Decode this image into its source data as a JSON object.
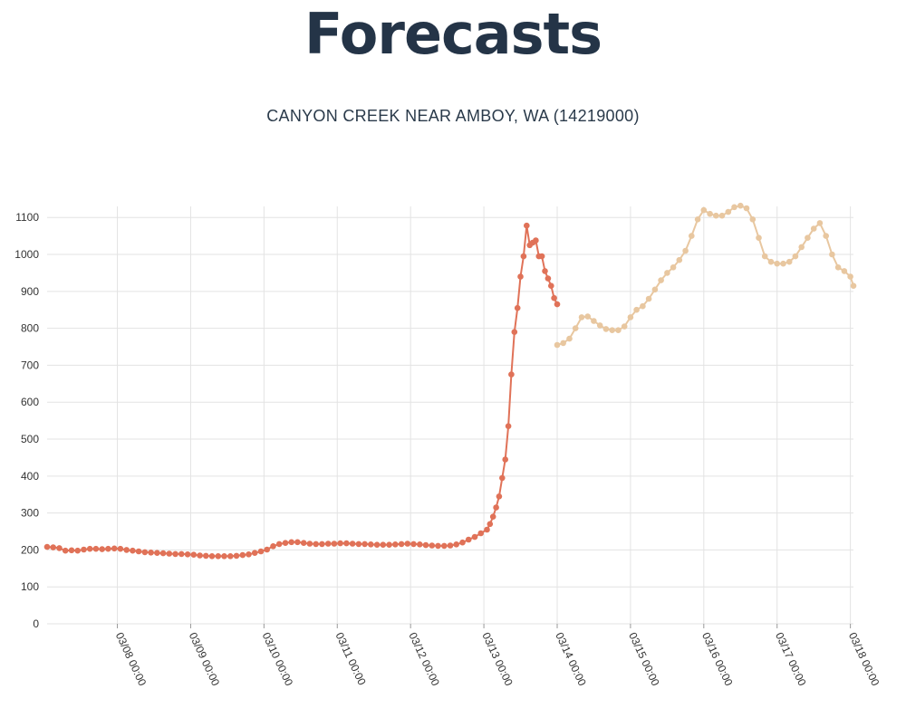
{
  "header": {
    "title": "Forecasts",
    "station": "CANYON CREEK NEAR AMBOY, WA (14219000)"
  },
  "chart_data": {
    "type": "line",
    "title": "",
    "xlabel": "",
    "ylabel": "",
    "ylim": [
      0,
      1100
    ],
    "yticks": [
      0,
      100,
      200,
      300,
      400,
      500,
      600,
      700,
      800,
      900,
      1000,
      1100
    ],
    "xlim": [
      "03/07 01:00",
      "03/18 01:00"
    ],
    "xticks": [
      "03/08 00:00",
      "03/09 00:00",
      "03/10 00:00",
      "03/11 00:00",
      "03/12 00:00",
      "03/13 00:00",
      "03/14 00:00",
      "03/15 00:00",
      "03/16 00:00",
      "03/17 00:00",
      "03/18 00:00"
    ],
    "grid": true,
    "colors": {
      "observed": "#e07258",
      "forecast": "#e8c7a0",
      "grid": "#e3e3e3"
    },
    "series": [
      {
        "key": "observed",
        "points": [
          [
            "03/07 01:00",
            208
          ],
          [
            "03/07 03:00",
            207
          ],
          [
            "03/07 05:00",
            205
          ],
          [
            "03/07 07:00",
            198
          ],
          [
            "03/07 09:00",
            199
          ],
          [
            "03/07 11:00",
            198
          ],
          [
            "03/07 13:00",
            201
          ],
          [
            "03/07 15:00",
            203
          ],
          [
            "03/07 17:00",
            203
          ],
          [
            "03/07 19:00",
            202
          ],
          [
            "03/07 21:00",
            203
          ],
          [
            "03/07 23:00",
            204
          ],
          [
            "03/08 01:00",
            203
          ],
          [
            "03/08 03:00",
            200
          ],
          [
            "03/08 05:00",
            198
          ],
          [
            "03/08 07:00",
            196
          ],
          [
            "03/08 09:00",
            194
          ],
          [
            "03/08 11:00",
            193
          ],
          [
            "03/08 13:00",
            192
          ],
          [
            "03/08 15:00",
            191
          ],
          [
            "03/08 17:00",
            190
          ],
          [
            "03/08 19:00",
            189
          ],
          [
            "03/08 21:00",
            189
          ],
          [
            "03/08 23:00",
            188
          ],
          [
            "03/09 01:00",
            187
          ],
          [
            "03/09 03:00",
            185
          ],
          [
            "03/09 05:00",
            184
          ],
          [
            "03/09 07:00",
            183
          ],
          [
            "03/09 09:00",
            183
          ],
          [
            "03/09 11:00",
            183
          ],
          [
            "03/09 13:00",
            183
          ],
          [
            "03/09 15:00",
            184
          ],
          [
            "03/09 17:00",
            186
          ],
          [
            "03/09 19:00",
            188
          ],
          [
            "03/09 21:00",
            192
          ],
          [
            "03/09 23:00",
            196
          ],
          [
            "03/10 01:00",
            201
          ],
          [
            "03/10 03:00",
            210
          ],
          [
            "03/10 05:00",
            216
          ],
          [
            "03/10 07:00",
            219
          ],
          [
            "03/10 09:00",
            221
          ],
          [
            "03/10 11:00",
            221
          ],
          [
            "03/10 13:00",
            219
          ],
          [
            "03/10 15:00",
            217
          ],
          [
            "03/10 17:00",
            216
          ],
          [
            "03/10 19:00",
            216
          ],
          [
            "03/10 21:00",
            217
          ],
          [
            "03/10 23:00",
            217
          ],
          [
            "03/11 01:00",
            218
          ],
          [
            "03/11 03:00",
            218
          ],
          [
            "03/11 05:00",
            217
          ],
          [
            "03/11 07:00",
            216
          ],
          [
            "03/11 09:00",
            216
          ],
          [
            "03/11 11:00",
            215
          ],
          [
            "03/11 13:00",
            214
          ],
          [
            "03/11 15:00",
            214
          ],
          [
            "03/11 17:00",
            214
          ],
          [
            "03/11 19:00",
            215
          ],
          [
            "03/11 21:00",
            216
          ],
          [
            "03/11 23:00",
            217
          ],
          [
            "03/12 01:00",
            216
          ],
          [
            "03/12 03:00",
            215
          ],
          [
            "03/12 05:00",
            213
          ],
          [
            "03/12 07:00",
            212
          ],
          [
            "03/12 09:00",
            211
          ],
          [
            "03/12 11:00",
            211
          ],
          [
            "03/12 13:00",
            212
          ],
          [
            "03/12 15:00",
            215
          ],
          [
            "03/12 17:00",
            220
          ],
          [
            "03/12 19:00",
            228
          ],
          [
            "03/12 21:00",
            235
          ],
          [
            "03/12 23:00",
            245
          ],
          [
            "03/13 01:00",
            255
          ],
          [
            "03/13 02:00",
            270
          ],
          [
            "03/13 03:00",
            290
          ],
          [
            "03/13 04:00",
            315
          ],
          [
            "03/13 05:00",
            345
          ],
          [
            "03/13 06:00",
            395
          ],
          [
            "03/13 07:00",
            445
          ],
          [
            "03/13 08:00",
            535
          ],
          [
            "03/13 09:00",
            675
          ],
          [
            "03/13 10:00",
            790
          ],
          [
            "03/13 11:00",
            855
          ],
          [
            "03/13 12:00",
            940
          ],
          [
            "03/13 13:00",
            995
          ],
          [
            "03/13 14:00",
            1078
          ],
          [
            "03/13 15:00",
            1025
          ],
          [
            "03/13 16:00",
            1032
          ],
          [
            "03/13 17:00",
            1038
          ],
          [
            "03/13 18:00",
            995
          ],
          [
            "03/13 19:00",
            995
          ],
          [
            "03/13 20:00",
            955
          ],
          [
            "03/13 21:00",
            935
          ],
          [
            "03/13 22:00",
            915
          ],
          [
            "03/13 23:00",
            882
          ],
          [
            "03/14 00:00",
            865
          ]
        ]
      },
      {
        "key": "forecast",
        "points": [
          [
            "03/14 00:00",
            755
          ],
          [
            "03/14 02:00",
            760
          ],
          [
            "03/14 04:00",
            772
          ],
          [
            "03/14 06:00",
            800
          ],
          [
            "03/14 08:00",
            830
          ],
          [
            "03/14 10:00",
            832
          ],
          [
            "03/14 12:00",
            820
          ],
          [
            "03/14 14:00",
            808
          ],
          [
            "03/14 16:00",
            798
          ],
          [
            "03/14 18:00",
            795
          ],
          [
            "03/14 20:00",
            795
          ],
          [
            "03/14 22:00",
            805
          ],
          [
            "03/15 00:00",
            830
          ],
          [
            "03/15 02:00",
            850
          ],
          [
            "03/15 04:00",
            860
          ],
          [
            "03/15 06:00",
            880
          ],
          [
            "03/15 08:00",
            905
          ],
          [
            "03/15 10:00",
            930
          ],
          [
            "03/15 12:00",
            950
          ],
          [
            "03/15 14:00",
            965
          ],
          [
            "03/15 16:00",
            985
          ],
          [
            "03/15 18:00",
            1010
          ],
          [
            "03/15 20:00",
            1050
          ],
          [
            "03/15 22:00",
            1095
          ],
          [
            "03/16 00:00",
            1120
          ],
          [
            "03/16 02:00",
            1110
          ],
          [
            "03/16 04:00",
            1105
          ],
          [
            "03/16 06:00",
            1105
          ],
          [
            "03/16 08:00",
            1115
          ],
          [
            "03/16 10:00",
            1128
          ],
          [
            "03/16 12:00",
            1132
          ],
          [
            "03/16 14:00",
            1125
          ],
          [
            "03/16 16:00",
            1095
          ],
          [
            "03/16 18:00",
            1045
          ],
          [
            "03/16 20:00",
            995
          ],
          [
            "03/16 22:00",
            980
          ],
          [
            "03/17 00:00",
            975
          ],
          [
            "03/17 02:00",
            975
          ],
          [
            "03/17 04:00",
            980
          ],
          [
            "03/17 06:00",
            995
          ],
          [
            "03/17 08:00",
            1020
          ],
          [
            "03/17 10:00",
            1045
          ],
          [
            "03/17 12:00",
            1070
          ],
          [
            "03/17 14:00",
            1085
          ],
          [
            "03/17 16:00",
            1050
          ],
          [
            "03/17 18:00",
            1000
          ],
          [
            "03/17 20:00",
            965
          ],
          [
            "03/17 22:00",
            955
          ],
          [
            "03/18 00:00",
            940
          ],
          [
            "03/18 01:00",
            915
          ]
        ]
      }
    ]
  }
}
